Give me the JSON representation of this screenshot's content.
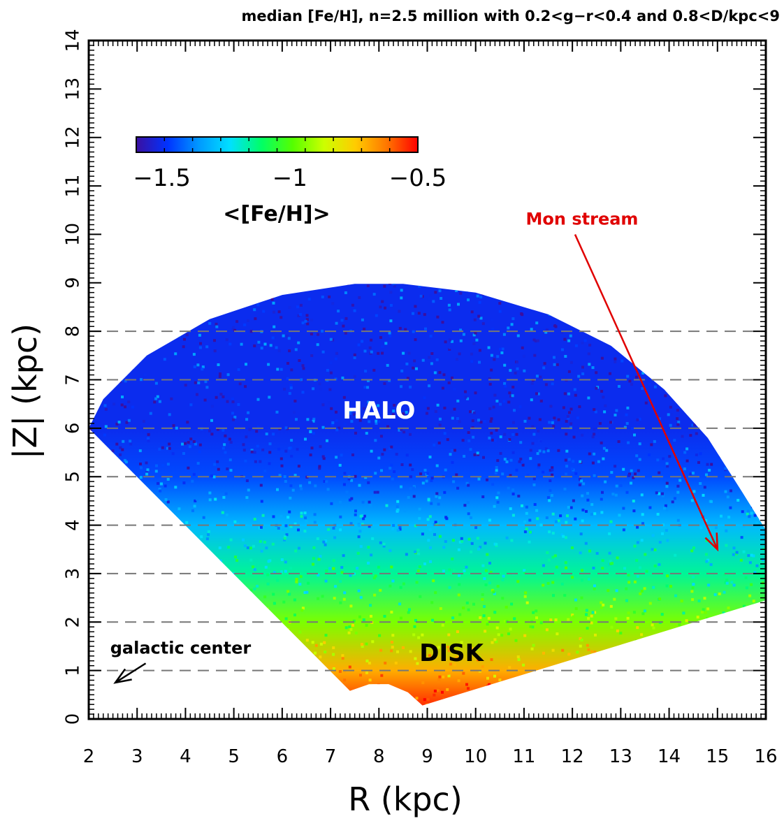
{
  "chart_data": {
    "type": "heatmap",
    "title": "median [Fe/H], n=2.5 million with 0.2<g−r<0.4 and 0.8<D/kpc<9",
    "xlabel": "R (kpc)",
    "ylabel": "|Z| (kpc)",
    "xlim": [
      2,
      16
    ],
    "ylim": [
      0,
      14
    ],
    "x_ticks": [
      "2",
      "3",
      "4",
      "5",
      "6",
      "7",
      "8",
      "9",
      "10",
      "11",
      "12",
      "13",
      "14",
      "15",
      "16"
    ],
    "y_ticks": [
      "0",
      "1",
      "2",
      "3",
      "4",
      "5",
      "6",
      "7",
      "8",
      "9",
      "10",
      "11",
      "12",
      "13",
      "14"
    ],
    "grid_lines_z": [
      1,
      2,
      3,
      4,
      5,
      6,
      7,
      8
    ],
    "grid_style": "dashed",
    "colorbar": {
      "label": "<[Fe/H]>",
      "range": [
        -1.6,
        -0.5
      ],
      "ticks": [
        {
          "value": -1.5,
          "label": "−1.5"
        },
        {
          "value": -1.0,
          "label": "−1"
        },
        {
          "value": -0.5,
          "label": "−0.5"
        }
      ],
      "colormap": [
        "#3b0fa0",
        "#0033ff",
        "#0099ff",
        "#00e0ff",
        "#00ff66",
        "#55ff00",
        "#ccff00",
        "#ffcc00",
        "#ff7700",
        "#ff0000"
      ]
    },
    "sample_profile": [
      {
        "z": 0.3,
        "feh": -0.55
      },
      {
        "z": 1.0,
        "feh": -0.7
      },
      {
        "z": 2.0,
        "feh": -0.95
      },
      {
        "z": 3.0,
        "feh": -1.15
      },
      {
        "z": 4.0,
        "feh": -1.3
      },
      {
        "z": 5.0,
        "feh": -1.45
      },
      {
        "z": 6.0,
        "feh": -1.5
      },
      {
        "z": 9.0,
        "feh": -1.5
      }
    ],
    "annotations": [
      {
        "text": "HALO",
        "x": 8.0,
        "z": 6.2,
        "color": "#ffffff"
      },
      {
        "text": "DISK",
        "x": 9.5,
        "z": 1.2,
        "color": "#000000"
      },
      {
        "text": "galactic center",
        "x": 3.9,
        "z": 1.35,
        "color": "#000000",
        "arrow_to": [
          2.55,
          0.75
        ]
      },
      {
        "text": "Mon stream",
        "x": 12.2,
        "z": 10.2,
        "color": "#e00000",
        "arrow_to": [
          15.0,
          3.5
        ]
      }
    ]
  }
}
